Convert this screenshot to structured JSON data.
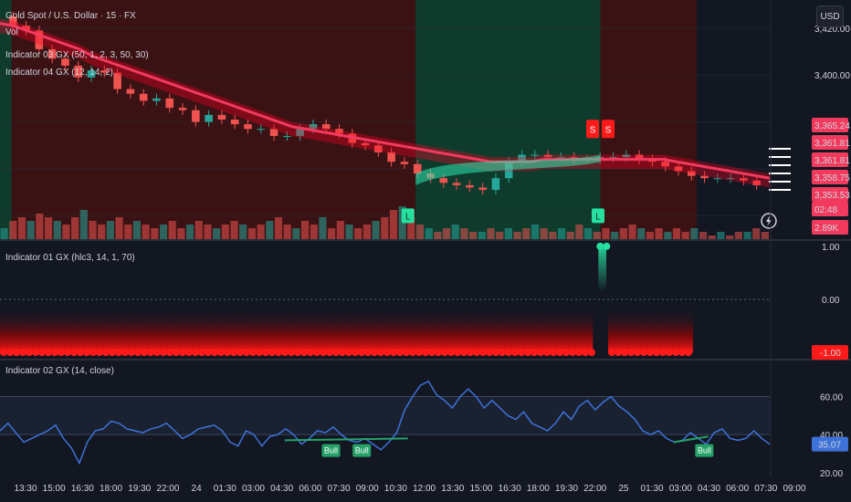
{
  "header": {
    "symbol_title": "Gold Spot / U.S. Dollar · 15 · FX",
    "vol_label": "Vol",
    "indicator03_title": "Indicator 03 GX (50, 1, 2, 3, 50, 30)",
    "indicator04_title": "Indicator 04 GX (12, 14, 2)",
    "currency_button": "USD"
  },
  "colors": {
    "background": "#131722",
    "bear_zone": "#3b1214",
    "bull_zone": "#0f3b2c",
    "up_candle": "#26a69a",
    "down_candle": "#ef5350",
    "ma_line": "#f23a5e",
    "bull_band": "#2ee6b0",
    "rsi_line": "#3d72d9",
    "rsi_pane_bg": "#1a2232",
    "signal_red": "#ff1a1a",
    "signal_green": "#26e0a0",
    "bull_label_bg": "#26a269"
  },
  "chart_data": [
    {
      "type": "line",
      "title": "Gold Spot / U.S. Dollar · 15 · FX",
      "x_ticks": [
        "13:30",
        "15:00",
        "16:30",
        "18:00",
        "19:30",
        "22:00",
        "24",
        "01:30",
        "03:00",
        "04:30",
        "06:00",
        "07:30",
        "09:00",
        "10:30",
        "12:00",
        "13:30",
        "15:00",
        "16:30",
        "18:00",
        "19:30",
        "22:00",
        "25",
        "01:30",
        "03:00",
        "04:30",
        "06:00",
        "07:30",
        "09:00"
      ],
      "y_ticks": [
        3420,
        3400,
        3380,
        3360,
        3340
      ],
      "y_tick_labels": [
        "3,420.00",
        "3,400.00"
      ],
      "ylim": [
        3330,
        3432
      ],
      "close_series": [
        3425,
        3421,
        3419,
        3411,
        3407,
        3404,
        3399,
        3402,
        3401,
        3394,
        3392,
        3389,
        3390,
        3386,
        3385,
        3380,
        3383,
        3381,
        3379,
        3377,
        3377,
        3374,
        3374,
        3377,
        3379,
        3377,
        3375,
        3371,
        3370,
        3367,
        3363,
        3362,
        3358,
        3356,
        3354,
        3353,
        3352,
        3351,
        3356,
        3363,
        3366,
        3366,
        3365,
        3365,
        3364,
        3364,
        3365,
        3365,
        3366,
        3364,
        3363,
        3361,
        3359,
        3357,
        3356,
        3356,
        3356,
        3355,
        3353
      ],
      "ma_series": [
        3422,
        3421,
        3419,
        3417,
        3415,
        3413,
        3411,
        3408,
        3406,
        3404,
        3402,
        3400,
        3398,
        3396,
        3394,
        3392,
        3390,
        3388,
        3386,
        3384,
        3382,
        3380,
        3378,
        3377,
        3376,
        3375,
        3374,
        3373,
        3372,
        3371,
        3370,
        3369,
        3368,
        3367,
        3366,
        3365,
        3364,
        3363,
        3363,
        3363,
        3363,
        3364,
        3364,
        3364,
        3364,
        3364,
        3364,
        3364,
        3364,
        3364,
        3364,
        3363,
        3362,
        3361,
        3360,
        3359,
        3358,
        3357,
        3356
      ],
      "zones": [
        {
          "from": 0.0,
          "to": 0.015,
          "state": "bull"
        },
        {
          "from": 0.015,
          "to": 0.54,
          "state": "bear"
        },
        {
          "from": 0.54,
          "to": 0.78,
          "state": "bull"
        },
        {
          "from": 0.78,
          "to": 0.905,
          "state": "bear"
        }
      ],
      "signals": [
        {
          "label": "L",
          "at": 0.53,
          "kind": "long"
        },
        {
          "label": "L",
          "at": 0.777,
          "kind": "long"
        },
        {
          "label": "S",
          "at": 0.77,
          "kind": "short"
        },
        {
          "label": "S",
          "at": 0.79,
          "kind": "short"
        }
      ],
      "price_labels": [
        {
          "text": "3,365.24",
          "color": "#f23a5e"
        },
        {
          "text": "3,361.81",
          "color": "#f23a5e"
        },
        {
          "text": "3,361.81",
          "color": "#f23a5e"
        },
        {
          "text": "3,358.75",
          "color": "#f23a5e"
        },
        {
          "text": "3,353.53",
          "color": "#f23a5e"
        },
        {
          "text": "02:48",
          "color": "#f23a5e"
        },
        {
          "text": "2.89K",
          "color": "#f23a5e"
        }
      ],
      "volume_series": [
        3,
        5,
        6,
        5,
        7,
        6,
        5,
        4,
        6,
        8,
        5,
        4,
        5,
        6,
        4,
        5,
        4,
        3,
        4,
        5,
        3,
        4,
        5,
        4,
        3,
        4,
        5,
        4,
        3,
        4,
        5,
        6,
        4,
        3,
        5,
        4,
        6,
        3,
        5,
        4,
        3,
        4,
        5,
        6,
        8,
        9,
        6,
        4,
        3,
        2,
        3,
        4,
        3,
        2,
        2,
        3,
        2,
        3,
        2,
        3,
        4,
        3,
        2,
        3,
        2,
        4,
        3,
        2,
        3,
        2,
        3,
        4,
        3,
        2,
        3,
        2,
        3,
        2,
        3,
        2,
        1,
        2,
        1,
        2,
        2,
        3,
        2
      ]
    },
    {
      "type": "line",
      "title": "Indicator 01 GX (hlc3, 14, 1, 70)",
      "y_tick_labels": [
        "1.00",
        "0.00"
      ],
      "current_value_label": "-1.00",
      "ylim": [
        -1.1,
        1.1
      ],
      "values_by_segment": [
        {
          "from": 0.0,
          "to": 0.775,
          "value": -1
        },
        {
          "from": 0.775,
          "to": 0.79,
          "value": 1
        },
        {
          "from": 0.79,
          "to": 0.905,
          "value": -1
        }
      ]
    },
    {
      "type": "line",
      "title": "Indicator 02 GX (14, close)",
      "y_tick_labels": [
        "60.00",
        "40.00",
        "20.00"
      ],
      "current_value_label": "35.07",
      "ylim": [
        18,
        78
      ],
      "upper_level": 60,
      "lower_level": 40,
      "values": [
        42,
        46,
        41,
        36,
        38,
        40,
        42,
        45,
        38,
        33,
        25,
        36,
        42,
        43,
        47,
        46,
        43,
        42,
        41,
        43,
        44,
        46,
        42,
        38,
        40,
        43,
        44,
        45,
        42,
        36,
        34,
        42,
        40,
        34,
        39,
        40,
        43,
        40,
        35,
        38,
        42,
        41,
        44,
        40,
        37,
        36,
        38,
        35,
        32,
        36,
        41,
        53,
        60,
        66,
        68,
        61,
        58,
        54,
        60,
        64,
        60,
        54,
        58,
        54,
        50,
        48,
        52,
        46,
        44,
        42,
        46,
        52,
        48,
        55,
        58,
        53,
        57,
        60,
        55,
        52,
        48,
        42,
        40,
        42,
        38,
        36,
        37,
        41,
        38,
        35,
        41,
        43,
        38,
        37,
        38,
        42,
        38,
        35
      ],
      "bull_labels": [
        {
          "label": "Bull",
          "at": 0.43
        },
        {
          "label": "Bull",
          "at": 0.47
        },
        {
          "label": "Bull",
          "at": 0.915
        }
      ],
      "divergence_lines": [
        {
          "from": 0.37,
          "to": 0.53,
          "from_value": 37,
          "to_value": 38
        },
        {
          "from": 0.875,
          "to": 0.92,
          "from_value": 36,
          "to_value": 39
        }
      ]
    }
  ]
}
